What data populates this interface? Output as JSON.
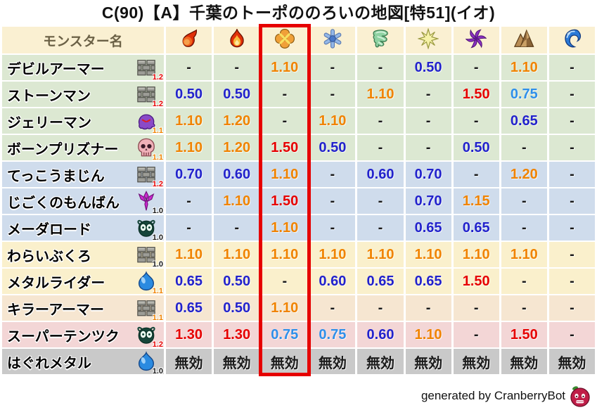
{
  "title": "C(90)【A】千葉のトーポののろいの地図[特51](イオ)",
  "footer": {
    "credit": "generated by CranberryBot",
    "bot_icon": "cranberry-icon"
  },
  "colors": {
    "header_bg": "#faf0d2",
    "highlight": "#e60000",
    "orange": "#f08300",
    "red": "#e60000",
    "blue": "#2222cc",
    "lightblue": "#2e8fea",
    "black": "#1a1a1a"
  },
  "row_colors": {
    "green": "#dce8d2",
    "blue": "#cfdcec",
    "cream": "#faf0cc",
    "tan": "#f6e6d1",
    "pink": "#f3d6d6",
    "gray": "#c9c9c9"
  },
  "value_color_map": {
    "0.50": "blue",
    "0.60": "blue",
    "0.65": "blue",
    "0.70": "blue",
    "0.75": "lightblue",
    "1.10": "orange",
    "1.15": "orange",
    "1.20": "orange",
    "1.30": "red",
    "1.50": "red",
    "-": "black",
    "無効": "black"
  },
  "multiplier_color_map": {
    "1.0": "black",
    "1.1": "orange",
    "1.2": "red"
  },
  "table": {
    "name_header": "モンスター名",
    "highlighted_column_index": 2,
    "element_columns": [
      {
        "icon": "fireball-icon"
      },
      {
        "icon": "flame-icon"
      },
      {
        "icon": "bang-icon",
        "highlighted": true
      },
      {
        "icon": "ice-icon"
      },
      {
        "icon": "wind-icon"
      },
      {
        "icon": "light-icon"
      },
      {
        "icon": "dark-icon"
      },
      {
        "icon": "earth-icon"
      },
      {
        "icon": "water-icon"
      }
    ],
    "monsters": [
      {
        "name": "デビルアーマー",
        "icon": "brick-icon",
        "multiplier": "1.2",
        "row_color": "green",
        "values": [
          "-",
          "-",
          "1.10",
          "-",
          "-",
          "0.50",
          "-",
          "1.10",
          "-"
        ]
      },
      {
        "name": "ストーンマン",
        "icon": "brick-icon",
        "multiplier": "1.2",
        "row_color": "green",
        "values": [
          "0.50",
          "0.50",
          "-",
          "-",
          "1.10",
          "-",
          "1.50",
          "0.75",
          "-"
        ]
      },
      {
        "name": "ジェリーマン",
        "icon": "purple-blob-icon",
        "multiplier": "1.1",
        "row_color": "green",
        "values": [
          "1.10",
          "1.20",
          "-",
          "1.10",
          "-",
          "-",
          "-",
          "0.65",
          "-"
        ]
      },
      {
        "name": "ボーンプリズナー",
        "icon": "skull-icon",
        "multiplier": "1.1",
        "row_color": "green",
        "values": [
          "1.10",
          "1.20",
          "1.50",
          "0.50",
          "-",
          "-",
          "0.50",
          "-",
          "-"
        ]
      },
      {
        "name": "てっこうまじん",
        "icon": "brick-icon",
        "multiplier": "1.2",
        "row_color": "blue",
        "values": [
          "0.70",
          "0.60",
          "1.10",
          "-",
          "0.60",
          "0.70",
          "-",
          "1.20",
          "-"
        ]
      },
      {
        "name": "じごくのもんばん",
        "icon": "trident-icon",
        "multiplier": "1.0",
        "row_color": "blue",
        "values": [
          "-",
          "1.10",
          "1.50",
          "-",
          "-",
          "0.70",
          "1.15",
          "-",
          "-"
        ]
      },
      {
        "name": "メーダロード",
        "icon": "bug-icon",
        "multiplier": "1.0",
        "row_color": "blue",
        "values": [
          "-",
          "-",
          "1.10",
          "-",
          "-",
          "0.65",
          "0.65",
          "-",
          "-"
        ]
      },
      {
        "name": "わらいぶくろ",
        "icon": "brick-icon",
        "multiplier": "1.0",
        "row_color": "cream",
        "values": [
          "1.10",
          "1.10",
          "1.10",
          "1.10",
          "1.10",
          "1.10",
          "1.10",
          "1.10",
          "-"
        ]
      },
      {
        "name": "メタルライダー",
        "icon": "slime-icon",
        "multiplier": "1.1",
        "row_color": "cream",
        "values": [
          "0.65",
          "0.50",
          "-",
          "0.60",
          "0.65",
          "0.65",
          "1.50",
          "-",
          "-"
        ]
      },
      {
        "name": "キラーアーマー",
        "icon": "brick-icon",
        "multiplier": "1.1",
        "row_color": "tan",
        "values": [
          "0.65",
          "0.50",
          "1.10",
          "-",
          "-",
          "-",
          "-",
          "-",
          "-"
        ]
      },
      {
        "name": "スーパーテンツク",
        "icon": "bug-icon",
        "multiplier": "1.2",
        "row_color": "pink",
        "values": [
          "1.30",
          "1.30",
          "0.75",
          "0.75",
          "0.60",
          "1.10",
          "-",
          "1.50",
          "-"
        ]
      },
      {
        "name": "はぐれメタル",
        "icon": "slime-icon",
        "multiplier": "1.0",
        "row_color": "gray",
        "values": [
          "無効",
          "無効",
          "無効",
          "無効",
          "無効",
          "無効",
          "無効",
          "無効",
          "無効"
        ]
      }
    ]
  }
}
